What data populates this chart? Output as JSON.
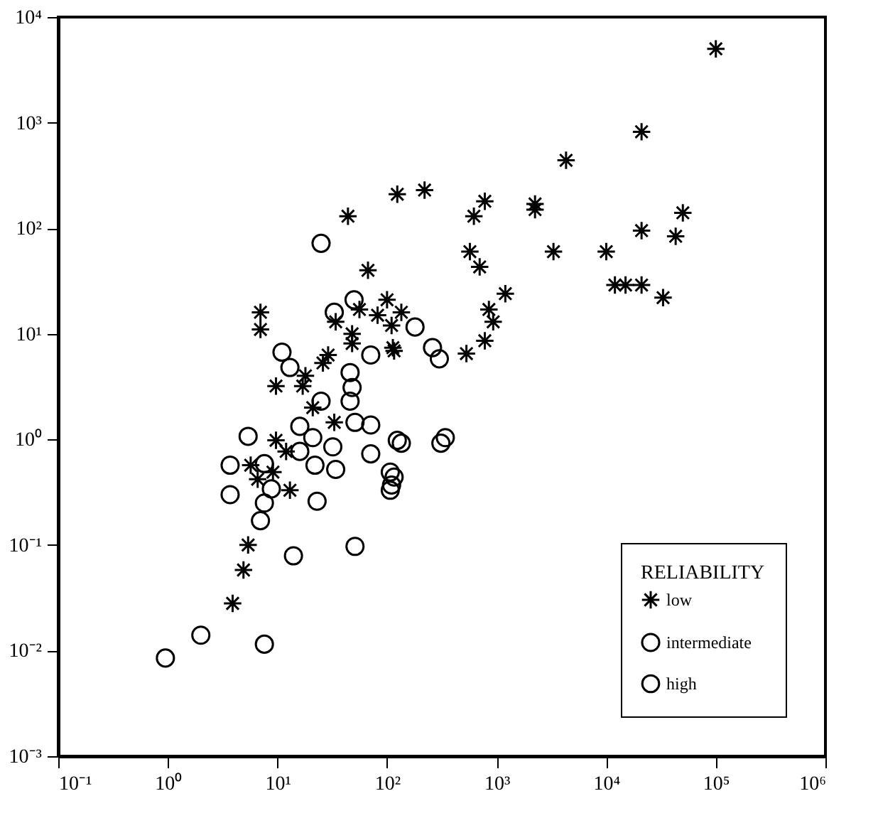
{
  "chart_data": {
    "type": "scatter",
    "legend_title": "RELIABILITY",
    "legend": "bottom right",
    "log": "xy",
    "grid": false,
    "xlim": [
      0.1,
      1000000
    ],
    "ylim": [
      0.001,
      10000
    ],
    "xticks": [
      {
        "value": 0.1,
        "label": "10⁻¹"
      },
      {
        "value": 1,
        "label": "10⁰"
      },
      {
        "value": 10,
        "label": "10¹"
      },
      {
        "value": 100,
        "label": "10²"
      },
      {
        "value": 1000,
        "label": "10³"
      },
      {
        "value": 10000,
        "label": "10⁴"
      },
      {
        "value": 100000,
        "label": "10⁵"
      },
      {
        "value": 1000000,
        "label": "10⁶"
      }
    ],
    "yticks": [
      {
        "value": 0.001,
        "label": "10⁻³"
      },
      {
        "value": 0.01,
        "label": "10⁻²"
      },
      {
        "value": 0.1,
        "label": "10⁻¹"
      },
      {
        "value": 1,
        "label": "10⁰"
      },
      {
        "value": 10,
        "label": "10¹"
      },
      {
        "value": 100,
        "label": "10²"
      },
      {
        "value": 1000,
        "label": "10³"
      },
      {
        "value": 10000,
        "label": "10⁴"
      }
    ],
    "series": [
      {
        "name": "low",
        "color": "#000000",
        "marker": "cross",
        "x": [
          100000,
          21000,
          4300,
          124,
          220,
          780,
          620,
          2240,
          2240,
          50000,
          21000,
          43000,
          3300,
          10000,
          570,
          700,
          12000,
          15000,
          21000,
          33000,
          1200,
          850,
          930,
          100,
          135,
          110,
          44,
          67,
          7.0,
          7.0,
          56,
          82,
          113,
          48,
          48,
          34,
          29,
          26,
          18,
          9.7,
          17,
          9.7,
          12,
          5.7,
          6.6,
          9.1,
          13,
          5.4,
          4.9,
          3.9,
          21,
          33,
          116,
          530,
          780
        ],
        "values": [
          5000,
          820,
          440,
          210,
          230,
          180,
          130,
          170,
          150,
          140,
          95,
          84,
          60,
          60,
          60,
          43,
          29,
          29,
          29,
          22,
          24,
          17,
          13,
          21,
          16,
          12,
          130,
          40,
          16,
          11,
          17,
          15,
          7.4,
          10,
          8.1,
          13,
          6.3,
          5.3,
          4.0,
          3.2,
          3.2,
          0.98,
          0.77,
          0.57,
          0.42,
          0.49,
          0.33,
          0.1,
          0.058,
          0.028,
          2.0,
          1.45,
          6.9,
          6.5,
          8.6
        ]
      },
      {
        "name": "intermediate",
        "color": "#000000",
        "marker": "circle",
        "x": [
          25,
          50,
          33,
          71,
          11,
          13,
          46,
          48,
          5.4,
          3.7,
          3.7,
          7.6,
          7.0,
          8.8,
          7.6,
          16,
          16,
          21,
          32,
          22,
          34,
          23,
          71,
          71,
          51,
          107,
          107,
          14,
          51,
          2.0,
          7.6,
          0.95,
          124,
          25,
          46,
          180,
          260,
          300,
          135,
          310,
          340,
          110,
          116
        ],
        "values": [
          72,
          21,
          16,
          6.3,
          6.7,
          4.8,
          4.3,
          3.1,
          1.07,
          0.57,
          0.3,
          0.25,
          0.17,
          0.34,
          0.59,
          1.33,
          0.77,
          1.04,
          0.85,
          0.57,
          0.52,
          0.26,
          1.37,
          0.73,
          1.45,
          0.49,
          0.33,
          0.079,
          0.097,
          0.014,
          0.0115,
          0.0085,
          0.98,
          2.3,
          2.3,
          11.6,
          7.4,
          5.8,
          0.92,
          0.92,
          1.04,
          0.37,
          0.44
        ]
      },
      {
        "name": "high",
        "color": "#000000",
        "marker": "circle"
      }
    ]
  }
}
